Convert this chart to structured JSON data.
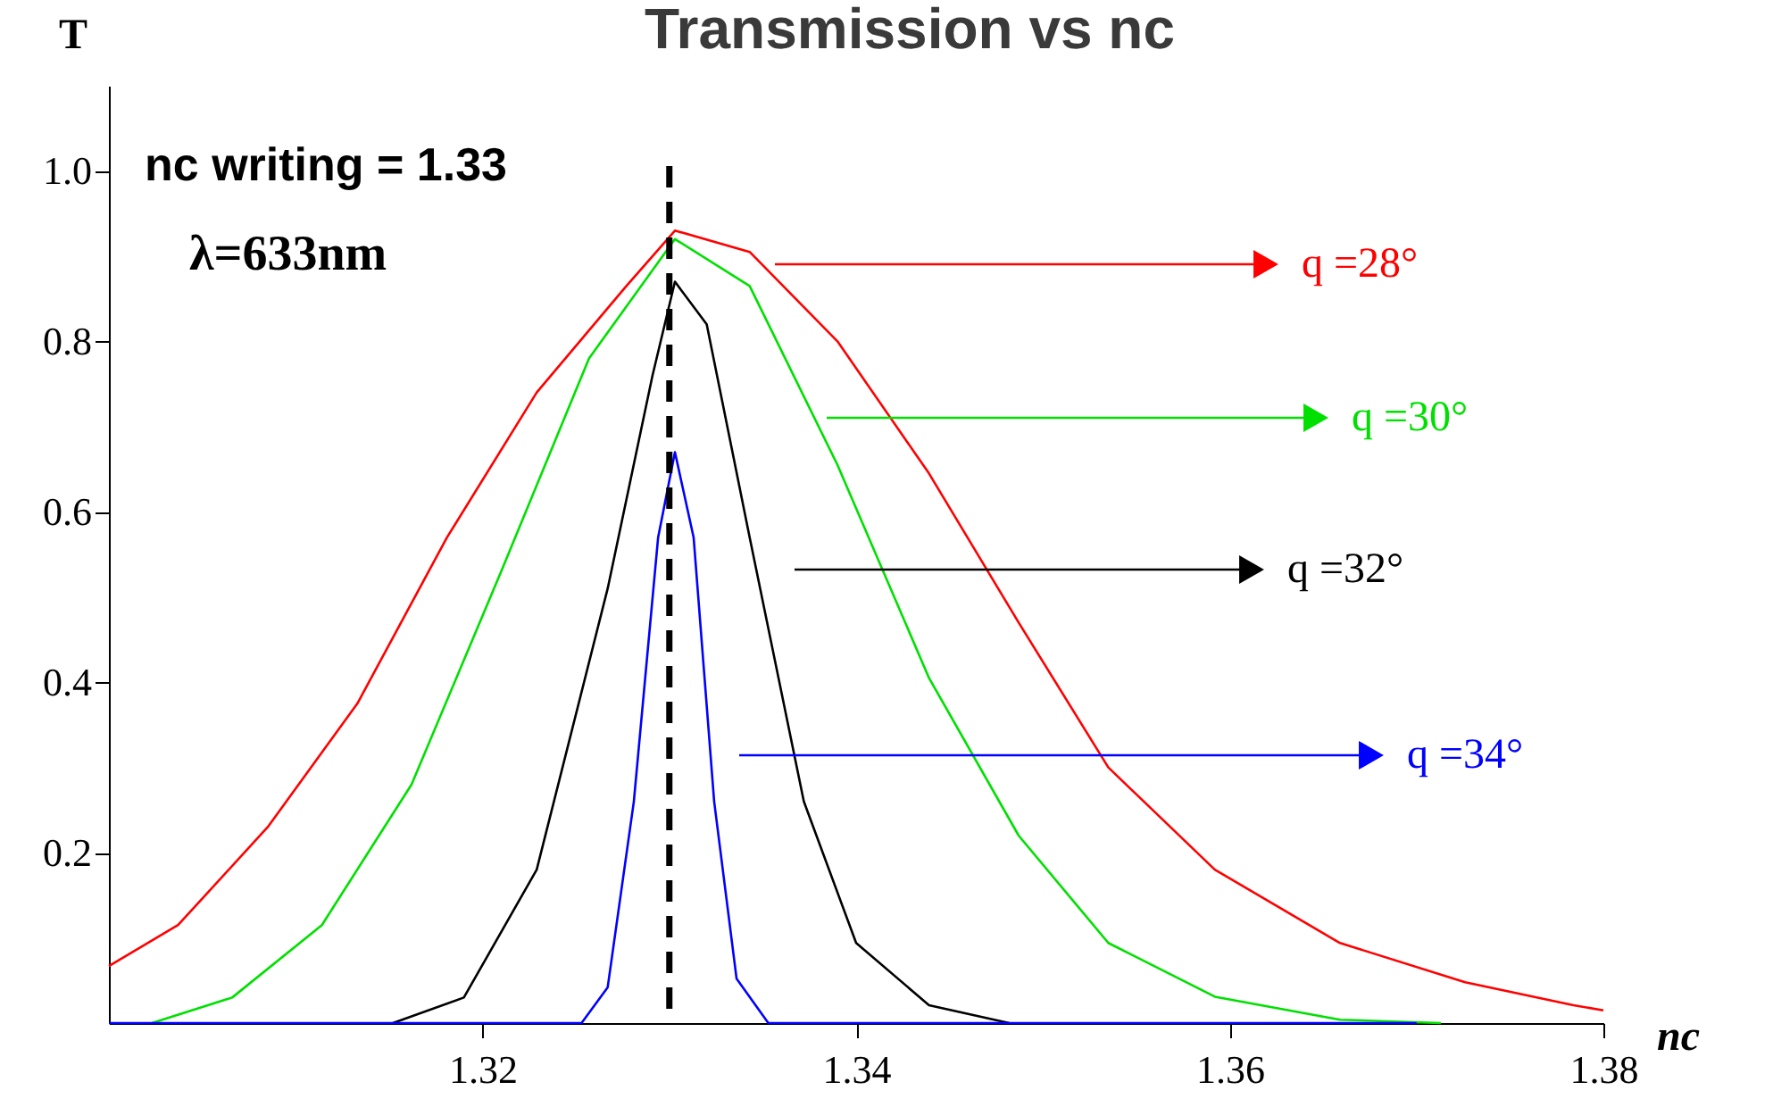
{
  "chart_data": {
    "type": "line",
    "title": "Transmission vs nc",
    "xlabel": "nc",
    "ylabel": "T",
    "xlim": [
      1.3,
      1.38
    ],
    "ylim": [
      0,
      1.1
    ],
    "xticks": [
      1.32,
      1.34,
      1.36,
      1.38
    ],
    "yticks": [
      0.2,
      0.4,
      0.6,
      0.8,
      {
        "value": 1.0,
        "label": "1.0"
      }
    ],
    "grid": false,
    "legend": "right",
    "marker": "none",
    "line_style": "solid",
    "annotations": [
      "nc writing = 1.33",
      "λ=633nm"
    ],
    "ref_lines": [
      {
        "axis": "x",
        "value": 1.33,
        "label": null,
        "color": "#000000",
        "line_style": "dashed"
      }
    ],
    "series": [
      {
        "name": "q =28°",
        "color": "#ff0000",
        "x": [
          1.3,
          1.3037,
          1.3085,
          1.3133,
          1.3181,
          1.3229,
          1.3277,
          1.3303,
          1.3343,
          1.339,
          1.3439,
          1.3487,
          1.3535,
          1.3592,
          1.3659,
          1.3726,
          1.3784,
          1.38
        ],
        "values": [
          0.067,
          0.115,
          0.23,
          0.375,
          0.57,
          0.74,
          0.865,
          0.93,
          0.905,
          0.8,
          0.645,
          0.47,
          0.3,
          0.18,
          0.094,
          0.048,
          0.021,
          0.015
        ]
      },
      {
        "name": "q =30°",
        "color": "#00e000",
        "x": [
          1.3023,
          1.3066,
          1.3114,
          1.3162,
          1.321,
          1.3257,
          1.3303,
          1.3343,
          1.339,
          1.3439,
          1.3487,
          1.3535,
          1.3592,
          1.3659,
          1.3713
        ],
        "values": [
          0,
          0.03,
          0.115,
          0.28,
          0.53,
          0.78,
          0.92,
          0.865,
          0.655,
          0.405,
          0.22,
          0.094,
          0.031,
          0.004,
          0
        ]
      },
      {
        "name": "q =32°",
        "color": "#000000",
        "x": [
          1.3152,
          1.319,
          1.3229,
          1.3267,
          1.3291,
          1.3303,
          1.332,
          1.3343,
          1.3372,
          1.34,
          1.3439,
          1.3482
        ],
        "values": [
          0,
          0.03,
          0.18,
          0.51,
          0.76,
          0.87,
          0.82,
          0.57,
          0.26,
          0.094,
          0.021,
          0
        ]
      },
      {
        "name": "q =34°",
        "color": "#0000ff",
        "x": [
          1.3,
          1.3253,
          1.3267,
          1.3281,
          1.3294,
          1.3303,
          1.3313,
          1.3324,
          1.3336,
          1.3353,
          1.37
        ],
        "values": [
          0,
          0,
          0.042,
          0.26,
          0.57,
          0.67,
          0.57,
          0.26,
          0.052,
          0,
          0
        ]
      }
    ]
  }
}
